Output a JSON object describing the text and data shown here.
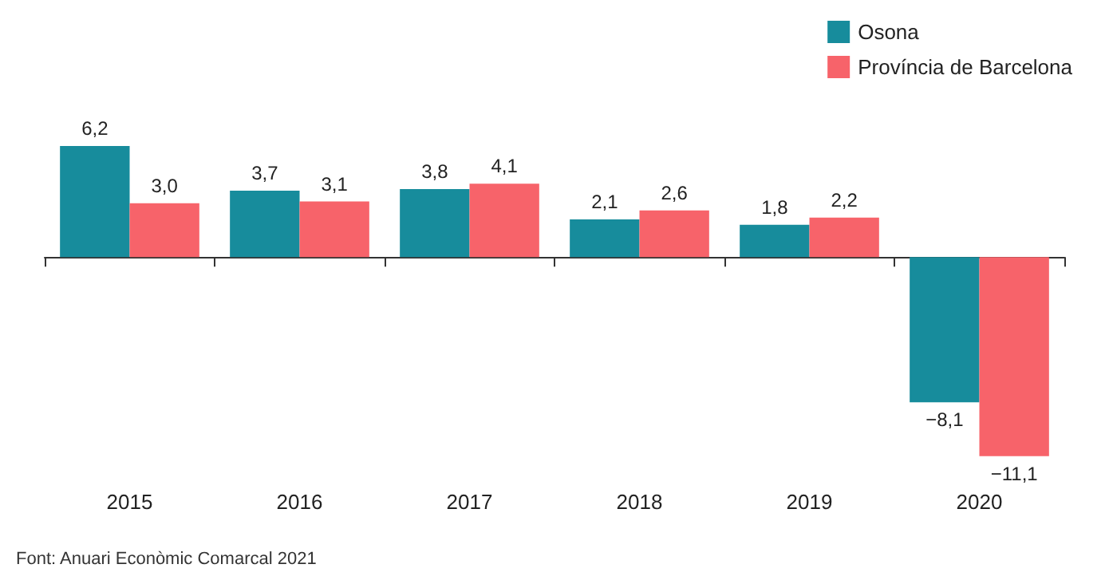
{
  "chart_data": {
    "type": "bar",
    "categories": [
      "2015",
      "2016",
      "2017",
      "2018",
      "2019",
      "2020"
    ],
    "series": [
      {
        "name": "Osona",
        "color": "#178c9c",
        "values": [
          6.2,
          3.7,
          3.8,
          2.1,
          1.8,
          -8.1
        ],
        "value_labels": [
          "6,2",
          "3,7",
          "3,8",
          "2,1",
          "1,8",
          "−8,1"
        ]
      },
      {
        "name": "Província de Barcelona",
        "color": "#f7636a",
        "values": [
          3.0,
          3.1,
          4.1,
          2.6,
          2.2,
          -11.1
        ],
        "value_labels": [
          "3,0",
          "3,1",
          "4,1",
          "2,6",
          "2,2",
          "−11,1"
        ]
      }
    ],
    "legend": "top right",
    "grid": false,
    "annotations": [
      "Font: Anuari Econòmic Comarcal 2021"
    ]
  }
}
